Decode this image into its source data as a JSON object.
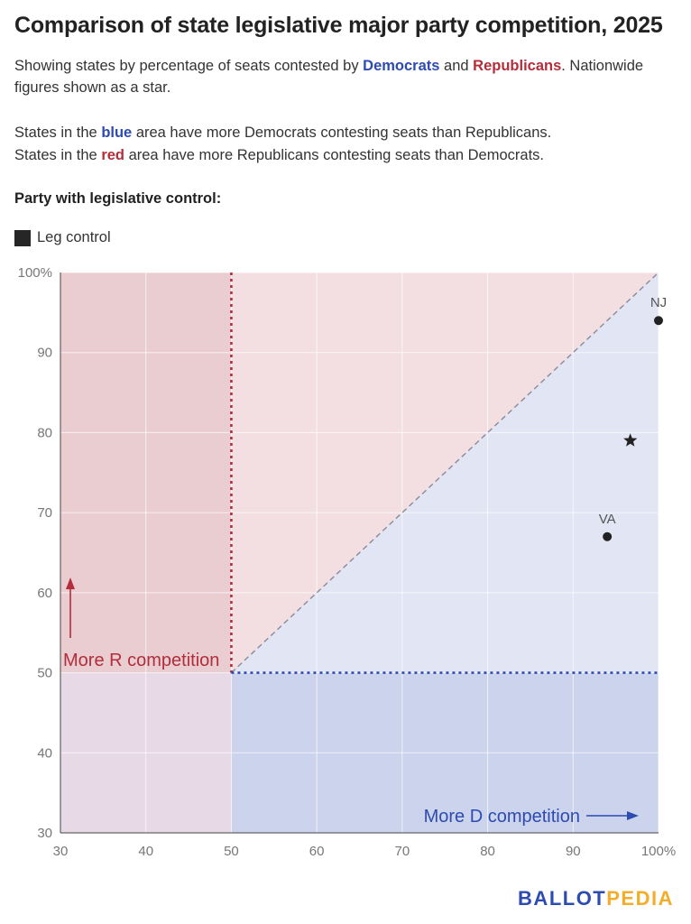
{
  "title": "Comparison of state legislative major party competition, 2025",
  "subtitle": {
    "prefix": "Showing states by percentage of seats contested by ",
    "dem": "Democrats",
    "and": " and ",
    "rep": "Republicans",
    "suffix": ". Nationwide figures shown as a star."
  },
  "area_note": {
    "line1_prefix": "States in the ",
    "line1_color": "blue",
    "line1_suffix": " area have more Democrats contesting seats than Republicans.",
    "line2_prefix": "States in the ",
    "line2_color": "red",
    "line2_suffix": " area have more Republicans contesting seats than Democrats."
  },
  "legend": {
    "title": "Party with legislative control:",
    "items": [
      {
        "label": "Leg control",
        "color": "#262626"
      }
    ]
  },
  "colors": {
    "democrat": "#2d4bb0",
    "republican": "#b32d3b",
    "red_region": "#f3dfe1",
    "red_region_dark": "#eacdd1",
    "blue_region": "#e1e5f4",
    "blue_region_dark": "#ccd3ec",
    "overlap_region": "#e7d9e5",
    "point": "#222222"
  },
  "chart_data": {
    "type": "scatter",
    "title": "Comparison of state legislative major party competition, 2025",
    "xlim": [
      30,
      100
    ],
    "ylim": [
      30,
      100
    ],
    "x_ticks": [
      "30",
      "40",
      "50",
      "60",
      "70",
      "80",
      "90",
      "100%"
    ],
    "y_ticks": [
      "30",
      "40",
      "50",
      "60",
      "70",
      "80",
      "90",
      "100%"
    ],
    "grid": true,
    "reference_lines": [
      {
        "kind": "diagonal",
        "from": [
          50,
          50
        ],
        "to": [
          100,
          100
        ],
        "style": "dashed"
      },
      {
        "kind": "vertical",
        "x": 50,
        "style": "dotted",
        "color": "#b32d3b"
      },
      {
        "kind": "horizontal",
        "y": 50,
        "style": "dotted",
        "color": "#2d4bb0"
      }
    ],
    "points": [
      {
        "label": "NJ",
        "x": 100,
        "y": 94,
        "marker": "circle"
      },
      {
        "label": "VA",
        "x": 94,
        "y": 67,
        "marker": "circle"
      },
      {
        "label": "",
        "x": 96.7,
        "y": 79,
        "marker": "star"
      }
    ],
    "annotations": [
      {
        "text": "More R competition",
        "color": "#b32d3b",
        "arrow": "up"
      },
      {
        "text": "More D competition",
        "color": "#2d4bb0",
        "arrow": "right"
      }
    ]
  },
  "logo": {
    "part1": "BALLOT",
    "part2": "PEDIA"
  }
}
